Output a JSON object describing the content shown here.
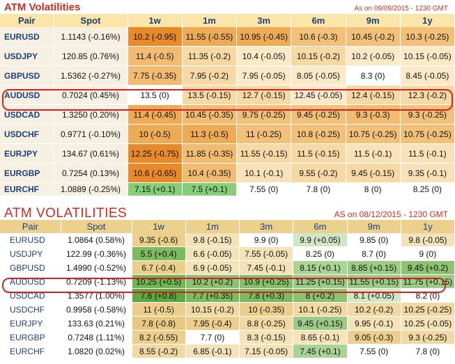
{
  "colors": {
    "title": "#c42e1e",
    "pair_text": "#1b3f7a",
    "highlight": "#d82020"
  },
  "columns": [
    "Pair",
    "Spot",
    "1w",
    "1m",
    "3m",
    "6m",
    "9m",
    "1y"
  ],
  "panel1": {
    "title": "ATM Volatilities",
    "as_of": "As on 09/09/2015 - 1230 GMT",
    "rows": [
      {
        "pair": "EURUSD",
        "spot": "1.1143 (-0.16%)",
        "cells": [
          "10.2 (-0.95)",
          "11.55 (-0.55)",
          "10.95 (-0.45)",
          "10.6 (-0.3)",
          "10.45 (-0.2)",
          "10.3 (-0.25)"
        ],
        "colors": [
          "#e8892a",
          "#eeab56",
          "#eeab56",
          "#f3c07a",
          "#f3c07a",
          "#f3c07a"
        ]
      },
      {
        "pair": "USDJPY",
        "spot": "120.85 (0.76%)",
        "cells": [
          "11.4 (-0.5)",
          "11.35 (-0.2)",
          "10.4 (-0.05)",
          "10.15 (-0.2)",
          "10.2 (-0.05)",
          "10.15 (-0.05)"
        ],
        "colors": [
          "#f1bb72",
          "#f7d9a6",
          "#fbe9c7",
          "#f7d9a6",
          "#fbe9c7",
          "#fbe9c7"
        ]
      },
      {
        "pair": "GBPUSD",
        "spot": "1.5362 (-0.27%)",
        "cells": [
          "7.75 (-0.35)",
          "7.95 (-0.2)",
          "7.95 (-0.05)",
          "8.05 (-0.05)",
          "8.3 (0)",
          "8.45 (-0.05)"
        ],
        "colors": [
          "#f1bb72",
          "#f7d9a6",
          "#fbe9c7",
          "#fbe9c7",
          "#ffffff",
          "#fbe9c7"
        ]
      },
      {
        "pair": "AUDUSD",
        "spot": "0.7024 (0.45%)",
        "cells": [
          "13.5 (0)",
          "13.5 (-0.15)",
          "12.7 (-0.15)",
          "12.45 (-0.05)",
          "12.4 (-0.15)",
          "12.3 (-0.2)"
        ],
        "colors": [
          "#ffffff",
          "#f7d9a6",
          "#f7d9a6",
          "#fbe9c7",
          "#f7d9a6",
          "#f7d9a6"
        ]
      },
      {
        "pair": "USDCAD",
        "spot": "1.3250 (0.20%)",
        "cells": [
          "11.4 (-0.45)",
          "10.45 (-0.35)",
          "9.75 (-0.25)",
          "9.45 (-0.25)",
          "9.3 (-0.3)",
          "9.3 (-0.25)"
        ],
        "colors": [
          "#eeab56",
          "#f1bb72",
          "#f3c07a",
          "#f3c07a",
          "#f1bb72",
          "#f3c07a"
        ]
      },
      {
        "pair": "USDCHF",
        "spot": "0.9771 (-0.10%)",
        "cells": [
          "10 (-0.5)",
          "11.3 (-0.5)",
          "11 (-0.25)",
          "10.8 (-0.25)",
          "10.75 (-0.25)",
          "10.75 (-0.25)"
        ],
        "colors": [
          "#eeab56",
          "#eeab56",
          "#f3c07a",
          "#f3c07a",
          "#f3c07a",
          "#f3c07a"
        ]
      },
      {
        "pair": "EURJPY",
        "spot": "134.67 (0.61%)",
        "cells": [
          "12.25 (-0.75)",
          "11.85 (-0.35)",
          "11.55 (-0.15)",
          "11.5 (-0.15)",
          "11.5 (-0.1)",
          "11.5 (-0.1)"
        ],
        "colors": [
          "#e8892a",
          "#f1bb72",
          "#f7d9a6",
          "#f7d9a6",
          "#f9e2b8",
          "#f9e2b8"
        ]
      },
      {
        "pair": "EURGBP",
        "spot": "0.7254 (0.13%)",
        "cells": [
          "10.6 (-0.65)",
          "10.4 (-0.35)",
          "10.1 (-0.1)",
          "9.55 (-0.2)",
          "9.45 (-0.15)",
          "9.35 (-0.1)"
        ],
        "colors": [
          "#e8892a",
          "#f1bb72",
          "#f9e2b8",
          "#f7d9a6",
          "#f7d9a6",
          "#f9e2b8"
        ]
      },
      {
        "pair": "EURCHF",
        "spot": "1.0889 (-0.25%)",
        "cells": [
          "7.15 (+0.1)",
          "7.5 (+0.1)",
          "7.55 (0)",
          "7.8 (0)",
          "8 (0)",
          "8.25 (0)"
        ],
        "colors": [
          "#86cf78",
          "#86cf78",
          "#ffffff",
          "#ffffff",
          "#ffffff",
          "#ffffff"
        ]
      }
    ]
  },
  "panel2": {
    "title": "ATM VOLATILITIES",
    "as_of": "AS on 08/12/2015 - 1230 GMT",
    "rows": [
      {
        "pair": "EURUSD",
        "spot": "1.0864 (0.58%)",
        "cells": [
          "9.35 (-0.6)",
          "9.8 (-0.15)",
          "9.9 (0)",
          "9.9 (+0.05)",
          "9.85 (0)",
          "9.8 (-0.05)"
        ],
        "colors": [
          "#eccf8c",
          "#f4e2b8",
          "#ffffff",
          "#d1e6c4",
          "#ffffff",
          "#f4e2b8"
        ]
      },
      {
        "pair": "USDJPY",
        "spot": "122.99 (-0.36%)",
        "cells": [
          "5.5 (+0.4)",
          "6.6 (-0.05)",
          "7.55 (-0.05)",
          "8.25 (0)",
          "8.7 (0)",
          "9 (0)"
        ],
        "colors": [
          "#7dbb5e",
          "#f4e2b8",
          "#f4e2b8",
          "#ffffff",
          "#ffffff",
          "#ffffff"
        ]
      },
      {
        "pair": "GBPUSD",
        "spot": "1.4990 (-0.52%)",
        "cells": [
          "6.7 (-0.4)",
          "6.9 (-0.05)",
          "7.45 (-0.1)",
          "8.15 (+0.1)",
          "8.85 (+0.15)",
          "9.45 (+0.2)"
        ],
        "colors": [
          "#eccf8c",
          "#f4e2b8",
          "#f4e2b8",
          "#aad496",
          "#9bcb84",
          "#8cc271"
        ]
      },
      {
        "pair": "AUDUSD",
        "spot": "0.7209 (-1.13%)",
        "cells": [
          "10.25 (+0.5)",
          "10.2 (+0.2)",
          "10.9 (+0.25)",
          "11.25 (+0.15)",
          "11.55 (+0.15)",
          "11.75 (+0.15)"
        ],
        "colors": [
          "#73b553",
          "#8cc271",
          "#86be6a",
          "#9bcb84",
          "#9bcb84",
          "#9bcb84"
        ]
      },
      {
        "pair": "USDCAD",
        "spot": "1.3577 (1.00%)",
        "cells": [
          "7.6 (+0.8)",
          "7.7 (+0.35)",
          "7.8 (+0.3)",
          "8 (+0.2)",
          "8.1 (+0.05)",
          "8.2 (0)"
        ],
        "colors": [
          "#5ea93f",
          "#7dbb5e",
          "#7dbb5e",
          "#8cc271",
          "#d1e6c4",
          "#ffffff"
        ]
      },
      {
        "pair": "USDCHF",
        "spot": "0.9958 (-0.58%)",
        "cells": [
          "11 (-0.5)",
          "10.15 (-0.2)",
          "10 (-0.35)",
          "10.1 (-0.25)",
          "10.2 (-0.2)",
          "10.25 (-0.25)"
        ],
        "colors": [
          "#eccf8c",
          "#f0d9a2",
          "#eccf8c",
          "#f0d9a2",
          "#f0d9a2",
          "#f0d9a2"
        ]
      },
      {
        "pair": "EURJPY",
        "spot": "133.63 (0.21%)",
        "cells": [
          "7.8 (-0.8)",
          "7.95 (-0.4)",
          "8.8 (-0.25)",
          "9.45 (+0.15)",
          "9.95 (-0.1)",
          "10.25 (-0.05)"
        ],
        "colors": [
          "#e8c77e",
          "#eccf8c",
          "#f0d9a2",
          "#9bcb84",
          "#f4e2b8",
          "#f4e2b8"
        ]
      },
      {
        "pair": "EURGBP",
        "spot": "0.7248 (1.11%)",
        "cells": [
          "8.2 (-0.55)",
          "7.7 (0)",
          "8.3 (-0.15)",
          "8.65 (-0.1)",
          "9.05 (-0.3)",
          "9.3 (-0.25)"
        ],
        "colors": [
          "#eccf8c",
          "#ffffff",
          "#f4e2b8",
          "#f4e2b8",
          "#eccf8c",
          "#f0d9a2"
        ]
      },
      {
        "pair": "EURCHF",
        "spot": "1.0820 (0.02%)",
        "cells": [
          "8.55 (-0.2)",
          "6.85 (-0.1)",
          "7.15 (-0.05)",
          "7.45 (+0.1)",
          "7.55 (0)",
          "7.8 (0)"
        ],
        "colors": [
          "#f0d9a2",
          "#f4e2b8",
          "#f4e2b8",
          "#aad496",
          "#ffffff",
          "#ffffff"
        ]
      }
    ]
  }
}
